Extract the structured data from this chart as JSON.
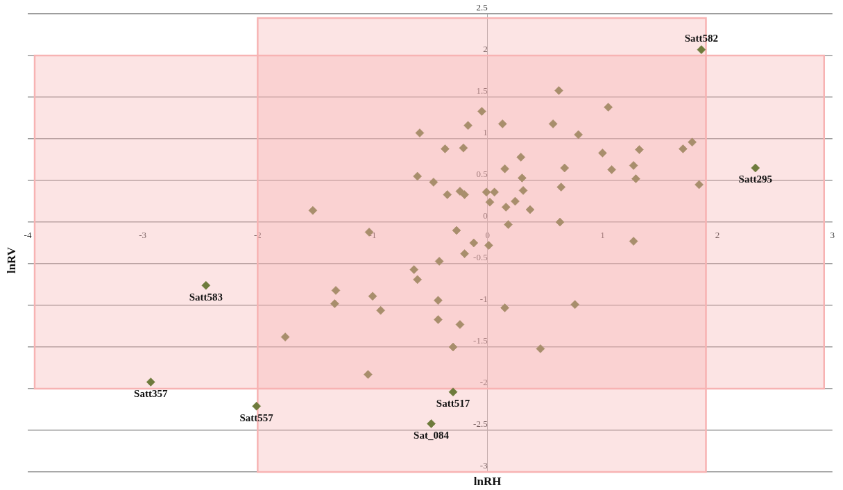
{
  "chart_data": {
    "type": "scatter",
    "xlabel": "lnRH",
    "ylabel": "lnRV",
    "xlim": [
      -4,
      3
    ],
    "xticks": [
      -4,
      -3,
      -2,
      -1,
      0,
      1,
      2,
      3
    ],
    "ylim": [
      -3,
      2.5
    ],
    "yticks": [
      -3,
      -2.5,
      -2,
      -1.5,
      -1,
      -0.5,
      0,
      0.5,
      1,
      1.5,
      2,
      2.5
    ],
    "grid": "y",
    "legend": false,
    "marker": "diamond",
    "bands": [
      {
        "axis": "x",
        "from": -2,
        "to": 1.9,
        "color": "#f7b3b3"
      },
      {
        "axis": "y",
        "from": -2,
        "to": 2,
        "color": "#f7b3b3"
      }
    ],
    "series": [
      {
        "color": "#a88e6c",
        "x": [
          0.62,
          1.05,
          -0.05,
          -0.17,
          0.13,
          0.57,
          -0.59,
          0.79,
          -0.37,
          -0.21,
          1.78,
          1.7,
          1.32,
          1.0,
          0.29,
          1.27,
          0.15,
          0.67,
          1.08,
          -0.61,
          1.29,
          0.3,
          1.84,
          -0.47,
          0.64,
          -0.24,
          0.31,
          -0.2,
          -0.35,
          -0.01,
          0.06,
          0.02,
          0.24,
          0.16,
          0.37,
          -1.52,
          0.18,
          0.63,
          -0.27,
          -1.03,
          -0.12,
          0.01,
          -0.2,
          -0.42,
          -0.64,
          -0.61,
          -1.32,
          -1.0,
          -0.43,
          -1.33,
          0.76,
          0.15,
          -0.93,
          -0.43,
          -0.24,
          -1.76,
          -0.3,
          0.46,
          -1.04,
          1.27
        ],
        "values": [
          1.58,
          1.38,
          1.33,
          1.16,
          1.18,
          1.18,
          1.07,
          1.05,
          0.88,
          0.89,
          0.96,
          0.88,
          0.87,
          0.83,
          0.78,
          0.68,
          0.64,
          0.65,
          0.63,
          0.55,
          0.52,
          0.53,
          0.45,
          0.48,
          0.42,
          0.37,
          0.38,
          0.33,
          0.33,
          0.36,
          0.36,
          0.24,
          0.25,
          0.18,
          0.15,
          0.14,
          -0.03,
          0,
          -0.1,
          -0.12,
          -0.25,
          -0.28,
          -0.38,
          -0.47,
          -0.57,
          -0.69,
          -0.82,
          -0.89,
          -0.94,
          -0.98,
          -0.99,
          -1.03,
          -1.06,
          -1.17,
          -1.23,
          -1.38,
          -1.5,
          -1.52,
          -1.83,
          -0.23
        ]
      },
      {
        "color": "#6e7b3c",
        "x": [
          1.86,
          2.33,
          -2.45,
          -2.93,
          -2.01,
          -0.3,
          -0.49
        ],
        "values": [
          2.07,
          0.65,
          -0.76,
          -1.92,
          -2.21,
          -2.04,
          -2.42
        ]
      }
    ],
    "annotations": [
      {
        "text": "Satt582",
        "x": 1.86,
        "y": 2.07
      },
      {
        "text": "Satt295",
        "x": 2.33,
        "y": 0.65
      },
      {
        "text": "Satt583",
        "x": -2.45,
        "y": -0.76
      },
      {
        "text": "Satt357",
        "x": -2.93,
        "y": -1.92
      },
      {
        "text": "Satt557",
        "x": -2.01,
        "y": -2.21
      },
      {
        "text": "Satt517",
        "x": -0.3,
        "y": -2.04
      },
      {
        "text": "Sat_084",
        "x": -0.49,
        "y": -2.42
      }
    ]
  }
}
